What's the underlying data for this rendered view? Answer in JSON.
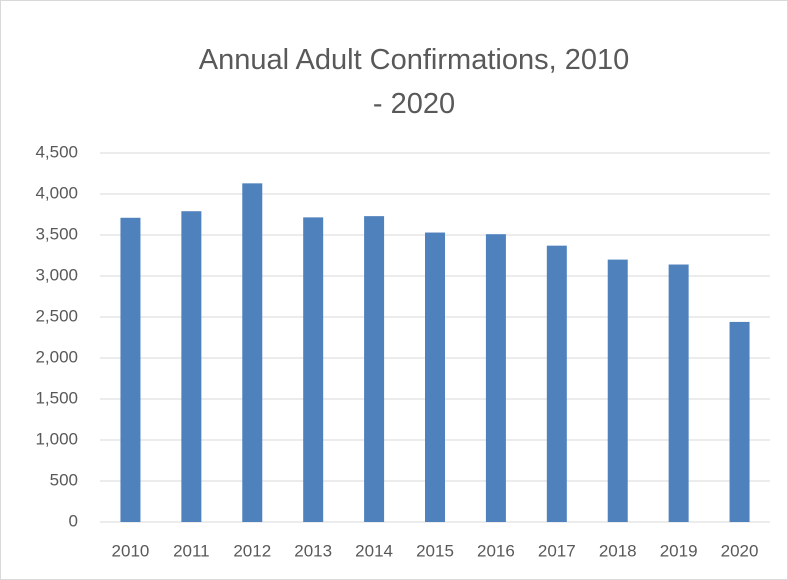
{
  "chart_data": {
    "type": "bar",
    "title": "Annual Adult Confirmations, 2010 - 2020",
    "categories": [
      "2010",
      "2011",
      "2012",
      "2013",
      "2014",
      "2015",
      "2016",
      "2017",
      "2018",
      "2019",
      "2020"
    ],
    "values": [
      3710,
      3790,
      4130,
      3715,
      3730,
      3530,
      3510,
      3370,
      3200,
      3140,
      2440
    ],
    "color": "#4f81bd",
    "ylim": [
      0,
      4500
    ],
    "yticks": [
      0,
      500,
      {
        "value": 1000,
        "label": "1,000"
      },
      {
        "value": 1500,
        "label": "1,500"
      },
      {
        "value": 2000,
        "label": "2,000"
      },
      {
        "value": 2500,
        "label": "2,500"
      },
      {
        "value": 3000,
        "label": "3,000"
      },
      {
        "value": 3500,
        "label": "3,500"
      },
      {
        "value": 4000,
        "label": "4,000"
      },
      {
        "value": 4500,
        "label": "4,500"
      }
    ],
    "grid": true
  }
}
